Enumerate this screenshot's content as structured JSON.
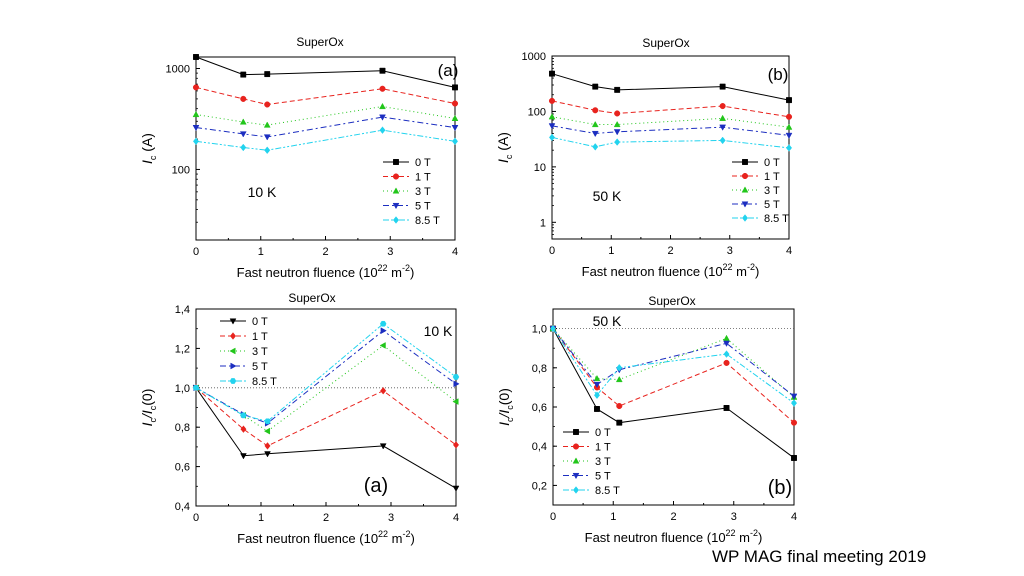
{
  "footer": "WP MAG final meeting 2019",
  "chart_data": [
    {
      "id": "top-left",
      "type": "line",
      "title": "SuperOx",
      "panel_label": "(a)",
      "temperature_label": "10 K",
      "xlabel": "Fast neutron fluence",
      "xunit_prefix": "(10",
      "xunit_exp1": "22",
      "xunit_mid": " m",
      "xunit_exp2": "-2",
      "xunit_suffix": ")",
      "ylabel_main": "I",
      "ylabel_sub": "c",
      "ylabel_unit": "(A)",
      "yscale": "log",
      "xlim": [
        0,
        4
      ],
      "ylim": [
        20,
        1300
      ],
      "xticks": [
        "0",
        "1",
        "2",
        "3",
        "4"
      ],
      "yticks": [
        {
          "v": 100,
          "label": "100"
        },
        {
          "v": 1000,
          "label": "1000"
        }
      ],
      "x": [
        0,
        0.73,
        1.1,
        2.88,
        4.0
      ],
      "series": [
        {
          "name": "0 T",
          "color": "#000000",
          "marker": "square",
          "dash": "",
          "values": [
            1300,
            870,
            880,
            950,
            650
          ]
        },
        {
          "name": "1 T",
          "color": "#e8231e",
          "marker": "circle",
          "dash": "5,3",
          "values": [
            650,
            500,
            440,
            630,
            450
          ]
        },
        {
          "name": "3 T",
          "color": "#22c61b",
          "marker": "triangle-up",
          "dash": "1,3",
          "values": [
            350,
            295,
            275,
            420,
            320
          ]
        },
        {
          "name": "5 T",
          "color": "#1c2ec0",
          "marker": "triangle-down",
          "dash": "6,3,2,3",
          "values": [
            260,
            225,
            210,
            330,
            260
          ]
        },
        {
          "name": "8.5 T",
          "color": "#22d3ee",
          "marker": "diamond",
          "dash": "6,2,2,2,2,2",
          "values": [
            190,
            165,
            155,
            245,
            190
          ]
        }
      ],
      "legend": "right"
    },
    {
      "id": "top-right",
      "type": "line",
      "title": "SuperOx",
      "panel_label": "(b)",
      "temperature_label": "50 K",
      "xlabel": "Fast neutron fluence",
      "xunit_prefix": "(10",
      "xunit_exp1": "22",
      "xunit_mid": " m",
      "xunit_exp2": "-2",
      "xunit_suffix": ")",
      "ylabel_main": "I",
      "ylabel_sub": "c",
      "ylabel_unit": "(A)",
      "yscale": "log",
      "xlim": [
        0,
        4
      ],
      "ylim": [
        0.5,
        1000
      ],
      "xticks": [
        "0",
        "1",
        "2",
        "3",
        "4"
      ],
      "yticks": [
        {
          "v": 1,
          "label": "1"
        },
        {
          "v": 10,
          "label": "10"
        },
        {
          "v": 100,
          "label": "100"
        },
        {
          "v": 1000,
          "label": "1000"
        }
      ],
      "x": [
        0,
        0.73,
        1.1,
        2.88,
        4.0
      ],
      "series": [
        {
          "name": "0 T",
          "color": "#000000",
          "marker": "square",
          "dash": "",
          "values": [
            480,
            280,
            245,
            280,
            160
          ]
        },
        {
          "name": "1 T",
          "color": "#e8231e",
          "marker": "circle",
          "dash": "5,3",
          "values": [
            155,
            105,
            92,
            125,
            80
          ]
        },
        {
          "name": "3 T",
          "color": "#22c61b",
          "marker": "triangle-up",
          "dash": "1,3",
          "values": [
            80,
            58,
            58,
            75,
            52
          ]
        },
        {
          "name": "5 T",
          "color": "#1c2ec0",
          "marker": "triangle-down",
          "dash": "6,3,2,3",
          "values": [
            55,
            40,
            43,
            52,
            37
          ]
        },
        {
          "name": "8.5 T",
          "color": "#22d3ee",
          "marker": "diamond",
          "dash": "6,2,2,2,2,2",
          "values": [
            34,
            23,
            28,
            30,
            22
          ]
        }
      ],
      "legend": "right"
    },
    {
      "id": "bottom-left",
      "type": "line",
      "title": "SuperOx",
      "panel_label": "(a)",
      "temperature_label": "10 K",
      "xlabel": "Fast neutron fluence",
      "xunit_prefix": "(10",
      "xunit_exp1": "22",
      "xunit_mid": " m",
      "xunit_exp2": "-2",
      "xunit_suffix": ")",
      "ylabel_main": "I",
      "ylabel_sub": "c",
      "ylabel_mid": "/I",
      "ylabel_sub2": "c",
      "ylabel_tail": "(0)",
      "yscale": "linear",
      "xlim": [
        0,
        4
      ],
      "ylim": [
        0.4,
        1.4
      ],
      "xticks": [
        "0",
        "1",
        "2",
        "3",
        "4"
      ],
      "yticks": [
        {
          "v": 0.4,
          "label": "0,4"
        },
        {
          "v": 0.6,
          "label": "0,6"
        },
        {
          "v": 0.8,
          "label": "0,8"
        },
        {
          "v": 1.0,
          "label": "1,0"
        },
        {
          "v": 1.2,
          "label": "1,2"
        },
        {
          "v": 1.4,
          "label": "1,4"
        }
      ],
      "reference_line": 1.0,
      "x": [
        0,
        0.73,
        1.1,
        2.88,
        4.0
      ],
      "series": [
        {
          "name": "0 T",
          "color": "#000000",
          "marker": "triangle-down",
          "dash": "",
          "values": [
            1.0,
            0.655,
            0.665,
            0.705,
            0.49
          ]
        },
        {
          "name": "1 T",
          "color": "#e8231e",
          "marker": "diamond",
          "dash": "5,3",
          "values": [
            1.0,
            0.79,
            0.705,
            0.985,
            0.71
          ]
        },
        {
          "name": "3 T",
          "color": "#22c61b",
          "marker": "triangle-left",
          "dash": "1,3",
          "values": [
            1.0,
            0.86,
            0.78,
            1.215,
            0.93
          ]
        },
        {
          "name": "5 T",
          "color": "#1c2ec0",
          "marker": "triangle-right",
          "dash": "6,3,2,3",
          "values": [
            1.0,
            0.865,
            0.82,
            1.29,
            1.02
          ]
        },
        {
          "name": "8.5 T",
          "color": "#22d3ee",
          "marker": "hexagon",
          "dash": "6,2,2,2,2,2",
          "values": [
            1.0,
            0.86,
            0.83,
            1.325,
            1.055
          ]
        }
      ],
      "legend": "top-left"
    },
    {
      "id": "bottom-right",
      "type": "line",
      "title": "SuperOx",
      "panel_label": "(b)",
      "temperature_label": "50 K",
      "xlabel": "Fast neutron fluence",
      "xunit_prefix": "(10",
      "xunit_exp1": "22",
      "xunit_mid": " m",
      "xunit_exp2": "-2",
      "xunit_suffix": ")",
      "ylabel_main": "I",
      "ylabel_sub": "c",
      "ylabel_mid": "/I",
      "ylabel_sub2": "c",
      "ylabel_tail": "(0)",
      "yscale": "linear",
      "xlim": [
        0,
        4
      ],
      "ylim": [
        0.1,
        1.1
      ],
      "xticks": [
        "0",
        "1",
        "2",
        "3",
        "4"
      ],
      "yticks": [
        {
          "v": 0.2,
          "label": "0,2"
        },
        {
          "v": 0.4,
          "label": "0,4"
        },
        {
          "v": 0.6,
          "label": "0,6"
        },
        {
          "v": 0.8,
          "label": "0,8"
        },
        {
          "v": 1.0,
          "label": "1,0"
        }
      ],
      "reference_line": 1.0,
      "x": [
        0,
        0.73,
        1.1,
        2.88,
        4.0
      ],
      "series": [
        {
          "name": "0 T",
          "color": "#000000",
          "marker": "square",
          "dash": "",
          "values": [
            1.0,
            0.59,
            0.52,
            0.595,
            0.34
          ]
        },
        {
          "name": "1 T",
          "color": "#e8231e",
          "marker": "circle",
          "dash": "5,3",
          "values": [
            1.0,
            0.7,
            0.605,
            0.825,
            0.52
          ]
        },
        {
          "name": "3 T",
          "color": "#22c61b",
          "marker": "triangle-up",
          "dash": "1,3",
          "values": [
            1.0,
            0.745,
            0.74,
            0.95,
            0.65
          ]
        },
        {
          "name": "5 T",
          "color": "#1c2ec0",
          "marker": "triangle-down",
          "dash": "6,3,2,3",
          "values": [
            1.0,
            0.715,
            0.79,
            0.925,
            0.655
          ]
        },
        {
          "name": "8.5 T",
          "color": "#22d3ee",
          "marker": "diamond",
          "dash": "6,2,2,2,2,2",
          "values": [
            1.0,
            0.66,
            0.8,
            0.87,
            0.62
          ]
        }
      ],
      "legend": "bottom-left"
    }
  ]
}
